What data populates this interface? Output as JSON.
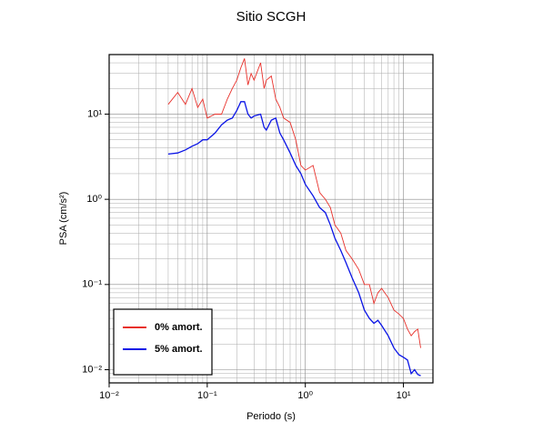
{
  "chart_data": {
    "type": "line",
    "title": "Sitio SCGH",
    "x_label": "Periodo (s)",
    "y_label": "PSA (cm/s²)",
    "xscale": "log",
    "yscale": "log",
    "grid": true,
    "legend": "lower left",
    "xlim": [
      0.01,
      20
    ],
    "ylim": [
      0.007,
      50
    ],
    "xticks": [
      {
        "value": 0.01,
        "label": "10⁻²"
      },
      {
        "value": 0.1,
        "label": "10⁻¹"
      },
      {
        "value": 1,
        "label": "10⁰"
      },
      {
        "value": 10,
        "label": "10¹"
      }
    ],
    "yticks": [
      {
        "value": 0.01,
        "label": "10⁻²"
      },
      {
        "value": 0.1,
        "label": "10⁻¹"
      },
      {
        "value": 1,
        "label": "10⁰"
      },
      {
        "value": 10,
        "label": "10¹"
      }
    ],
    "xminorticks": [
      0.02,
      0.03,
      0.04,
      0.05,
      0.06,
      0.07,
      0.08,
      0.09,
      0.2,
      0.3,
      0.4,
      0.5,
      0.6,
      0.7,
      0.8,
      0.9,
      2,
      3,
      4,
      5,
      6,
      7,
      8,
      9
    ],
    "yminorticks": [
      0.008,
      0.009,
      0.02,
      0.03,
      0.04,
      0.05,
      0.06,
      0.07,
      0.08,
      0.09,
      0.2,
      0.3,
      0.4,
      0.5,
      0.6,
      0.7,
      0.8,
      0.9,
      2,
      3,
      4,
      5,
      6,
      7,
      8,
      9,
      20,
      30,
      40
    ],
    "x": [
      0.04,
      0.05,
      0.06,
      0.07,
      0.08,
      0.09,
      0.1,
      0.12,
      0.14,
      0.16,
      0.18,
      0.2,
      0.22,
      0.24,
      0.26,
      0.28,
      0.3,
      0.35,
      0.38,
      0.4,
      0.45,
      0.5,
      0.55,
      0.6,
      0.7,
      0.8,
      0.9,
      1.0,
      1.2,
      1.4,
      1.6,
      1.8,
      2,
      2.3,
      2.6,
      3,
      3.5,
      4,
      4.5,
      5,
      5.5,
      6,
      7,
      8,
      9,
      10,
      11,
      12,
      13,
      14,
      15
    ],
    "series": [
      {
        "name": "0% amort.",
        "color": "#e8302a",
        "values": [
          13,
          18,
          13,
          20,
          12,
          15,
          9,
          10,
          10,
          15,
          20,
          25,
          35,
          45,
          22,
          30,
          25,
          40,
          20,
          25,
          28,
          15,
          12,
          9,
          8,
          5,
          2.5,
          2.2,
          2.5,
          1.2,
          1.0,
          0.8,
          0.5,
          0.4,
          0.25,
          0.2,
          0.15,
          0.1,
          0.1,
          0.06,
          0.08,
          0.09,
          0.07,
          0.05,
          0.045,
          0.04,
          0.03,
          0.025,
          0.028,
          0.03,
          0.018
        ]
      },
      {
        "name": "5% amort.",
        "color": "#0a14e6",
        "values": [
          3.4,
          3.5,
          3.8,
          4.2,
          4.5,
          5,
          5,
          6,
          7.5,
          8.5,
          9,
          11,
          14,
          14,
          10,
          9,
          9.5,
          10,
          7,
          6.5,
          8.5,
          9,
          6,
          5,
          3.5,
          2.5,
          2,
          1.5,
          1.1,
          0.8,
          0.7,
          0.5,
          0.35,
          0.25,
          0.18,
          0.12,
          0.08,
          0.05,
          0.04,
          0.035,
          0.038,
          0.033,
          0.025,
          0.018,
          0.015,
          0.014,
          0.013,
          0.009,
          0.01,
          0.0088,
          0.0085
        ]
      }
    ]
  }
}
